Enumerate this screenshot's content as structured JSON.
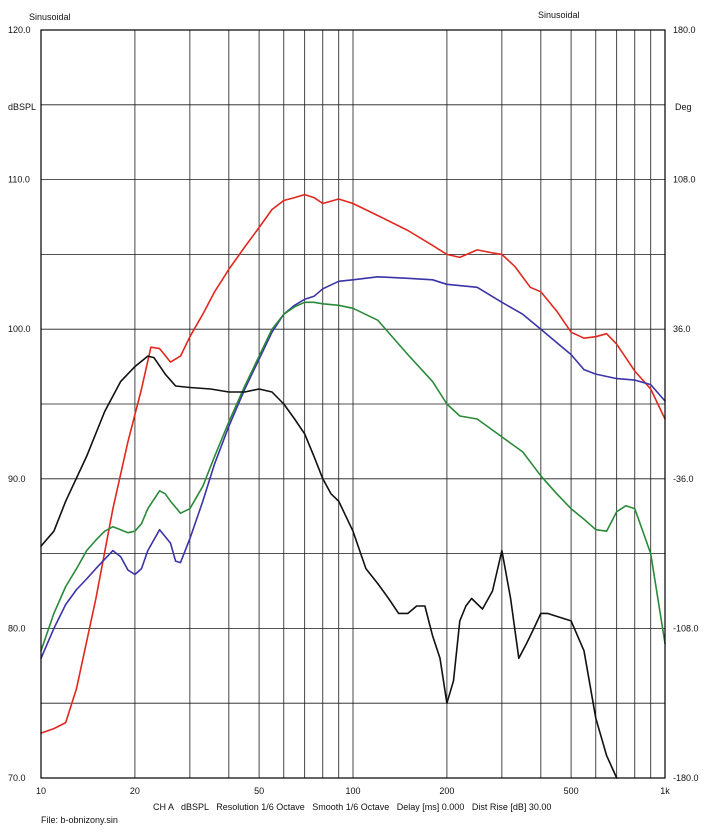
{
  "header": {
    "left_title": "Sinusoidal",
    "right_title": "Sinusoidal"
  },
  "footer": {
    "settings": "CH A   dBSPL   Resolution 1/6 Octave   Smooth 1/6 Octave   Delay [ms] 0.000   Dist Rise [dB] 30.00",
    "file": "File: b-obnizony.sin"
  },
  "chart_data": {
    "type": "line",
    "x_scale": "log",
    "xlim": [
      10,
      1000
    ],
    "x_tick_labels": [
      {
        "value": 10,
        "label": "10"
      },
      {
        "value": 20,
        "label": "20"
      },
      {
        "value": 50,
        "label": "50"
      },
      {
        "value": 100,
        "label": "100"
      },
      {
        "value": 200,
        "label": "200"
      },
      {
        "value": 500,
        "label": "500"
      },
      {
        "value": 1000,
        "label": "1k"
      }
    ],
    "y_left": {
      "unit_label": "dBSPL",
      "ylim": [
        70,
        120
      ],
      "tick_labels": [
        {
          "value": 120,
          "label": "120.0"
        },
        {
          "value": 110,
          "label": "110.0"
        },
        {
          "value": 100,
          "label": "100.0"
        },
        {
          "value": 90,
          "label": "90.0"
        },
        {
          "value": 80,
          "label": "80.0"
        },
        {
          "value": 70,
          "label": "70.0"
        }
      ]
    },
    "y_right": {
      "unit_label": "Deg",
      "ylim": [
        -180,
        180
      ],
      "tick_labels": [
        {
          "value": 180,
          "label": "180.0"
        },
        {
          "value": 108,
          "label": "108.0"
        },
        {
          "value": 36,
          "label": "36.0"
        },
        {
          "value": -36,
          "label": "-36.0"
        },
        {
          "value": -108,
          "label": "-108.0"
        },
        {
          "value": -180,
          "label": "-180.0"
        }
      ]
    },
    "grid": true,
    "series": [
      {
        "color": "#e0281e",
        "x": [
          10,
          11,
          12,
          13,
          15,
          17,
          19,
          21,
          22.5,
          24,
          26,
          28,
          30,
          33,
          36,
          40,
          45,
          50,
          55,
          60,
          65,
          70,
          75,
          80,
          90,
          100,
          120,
          150,
          180,
          200,
          220,
          250,
          280,
          300,
          330,
          370,
          400,
          450,
          500,
          550,
          600,
          650,
          700,
          800,
          900,
          1000
        ],
        "values": [
          73.0,
          73.3,
          73.7,
          76.0,
          82.0,
          88.0,
          92.5,
          96.0,
          98.8,
          98.7,
          97.8,
          98.2,
          99.5,
          101.0,
          102.5,
          104.0,
          105.5,
          106.8,
          108.0,
          108.6,
          108.8,
          109.0,
          108.8,
          108.4,
          108.7,
          108.4,
          107.6,
          106.6,
          105.6,
          105.0,
          104.8,
          105.3,
          105.1,
          105.0,
          104.2,
          102.8,
          102.5,
          101.2,
          99.8,
          99.4,
          99.5,
          99.7,
          99.0,
          97.2,
          96.0,
          94.0
        ]
      },
      {
        "color": "#3a34a8",
        "x": [
          10,
          11,
          12,
          13,
          14,
          15,
          17,
          18,
          19,
          20,
          21,
          22,
          24,
          26,
          27,
          28,
          30,
          33,
          36,
          40,
          45,
          50,
          55,
          60,
          65,
          70,
          75,
          80,
          90,
          100,
          120,
          150,
          180,
          200,
          250,
          300,
          350,
          400,
          500,
          550,
          600,
          700,
          800,
          900,
          1000
        ],
        "values": [
          78.0,
          80.0,
          81.6,
          82.6,
          83.3,
          84.0,
          85.2,
          84.8,
          83.9,
          83.6,
          84.0,
          85.2,
          86.6,
          85.7,
          84.5,
          84.4,
          86.0,
          88.5,
          91.0,
          93.5,
          96.0,
          98.0,
          99.8,
          101.0,
          101.6,
          102.0,
          102.2,
          102.7,
          103.2,
          103.3,
          103.5,
          103.4,
          103.3,
          103.0,
          102.8,
          101.8,
          101.0,
          100.0,
          98.3,
          97.3,
          97.0,
          96.7,
          96.6,
          96.3,
          95.2
        ]
      },
      {
        "color": "#2a8a3a",
        "x": [
          10,
          11,
          12,
          13,
          14,
          15,
          16,
          17,
          18,
          19,
          20,
          21,
          22,
          24,
          25,
          26,
          28,
          30,
          33,
          36,
          40,
          45,
          50,
          55,
          60,
          65,
          70,
          75,
          80,
          90,
          100,
          120,
          150,
          180,
          200,
          220,
          250,
          300,
          350,
          400,
          450,
          500,
          550,
          600,
          650,
          700,
          750,
          800,
          900,
          1000
        ],
        "values": [
          78.5,
          81.0,
          82.8,
          84.0,
          85.2,
          85.9,
          86.5,
          86.8,
          86.6,
          86.4,
          86.5,
          87.0,
          88.0,
          89.2,
          89.0,
          88.5,
          87.7,
          88.0,
          89.5,
          91.5,
          93.8,
          96.2,
          98.2,
          100.0,
          101.0,
          101.5,
          101.8,
          101.8,
          101.7,
          101.6,
          101.4,
          100.6,
          98.3,
          96.5,
          95.0,
          94.2,
          94.0,
          92.8,
          91.8,
          90.2,
          89.0,
          88.0,
          87.3,
          86.6,
          86.5,
          87.8,
          88.2,
          88.0,
          85.0,
          79.0
        ]
      },
      {
        "color": "#111111",
        "x": [
          10,
          11,
          12,
          14,
          16,
          18,
          20,
          22,
          23,
          25,
          27,
          30,
          35,
          40,
          45,
          50,
          55,
          60,
          65,
          70,
          75,
          80,
          85,
          90,
          100,
          110,
          120,
          130,
          140,
          150,
          160,
          170,
          180,
          190,
          200,
          210,
          220,
          230,
          240,
          260,
          280,
          300,
          320,
          340,
          360,
          380,
          400,
          420,
          450,
          500,
          550,
          600,
          650,
          700
        ],
        "values": [
          85.5,
          86.5,
          88.5,
          91.5,
          94.5,
          96.5,
          97.5,
          98.2,
          98.1,
          97.0,
          96.2,
          96.1,
          96.0,
          95.8,
          95.8,
          96.0,
          95.8,
          95.0,
          94.0,
          93.0,
          91.5,
          90.0,
          89.0,
          88.5,
          86.5,
          84.0,
          83.0,
          82.0,
          81.0,
          81.0,
          81.5,
          81.5,
          79.5,
          78.0,
          75.0,
          76.5,
          80.5,
          81.5,
          82.0,
          81.3,
          82.5,
          85.2,
          82.0,
          78.0,
          79.0,
          80.0,
          81.0,
          81.0,
          80.8,
          80.5,
          78.5,
          74.0,
          71.5,
          70.0
        ]
      }
    ]
  }
}
